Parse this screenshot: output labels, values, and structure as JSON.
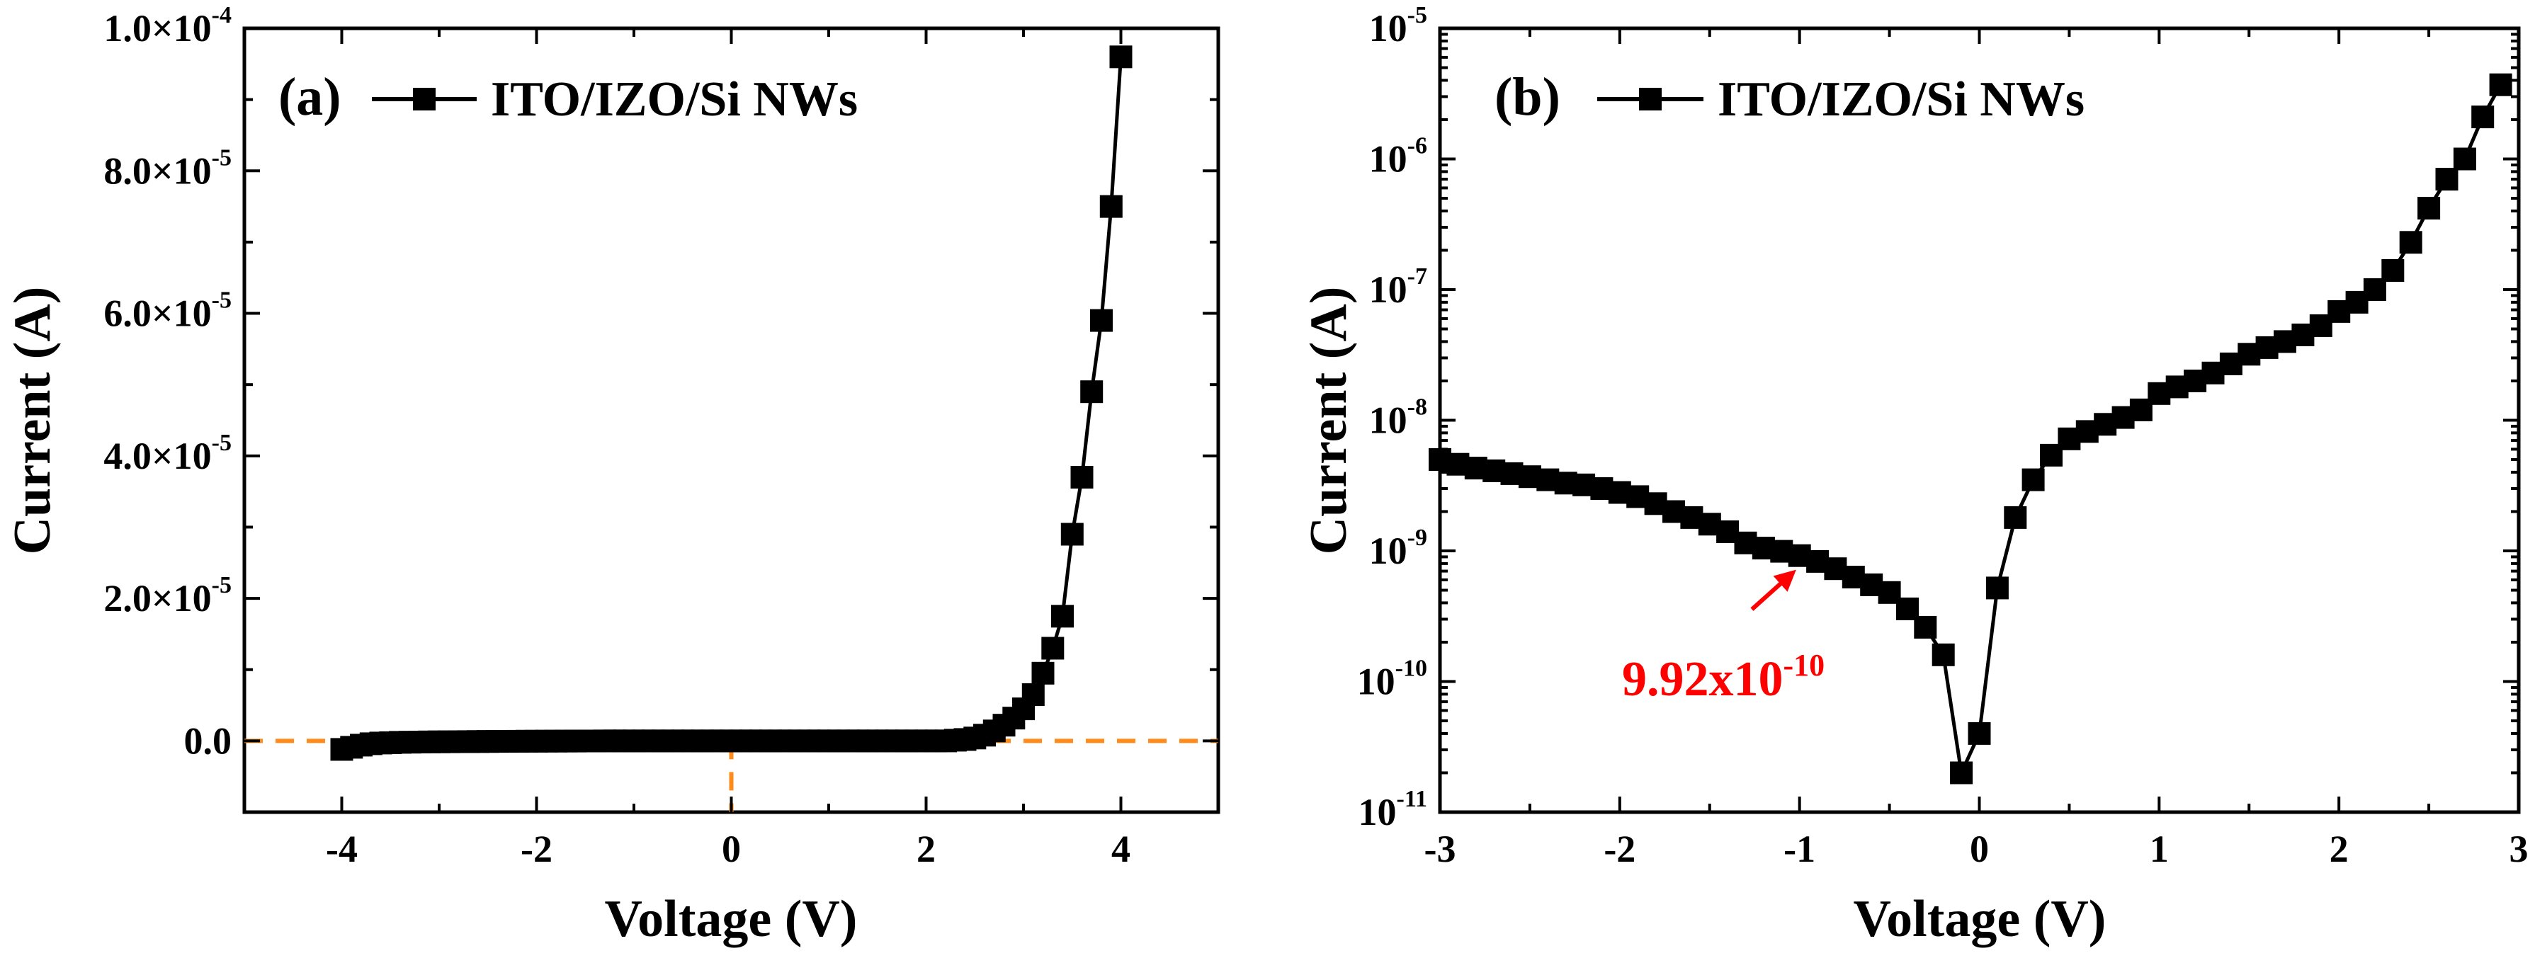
{
  "chart_data": [
    {
      "panel": "a",
      "type": "line",
      "panel_label": "(a)",
      "xlabel": "Voltage (V)",
      "ylabel": "Current (A)",
      "xlim": [
        -5,
        5
      ],
      "ylim": [
        -1e-05,
        0.0001
      ],
      "xticks": [
        -4,
        -2,
        0,
        2,
        4
      ],
      "yticks": [
        {
          "value": 0.0,
          "label": "0.0"
        },
        {
          "value": 2e-05,
          "label": "2.0×10",
          "exp": "-5"
        },
        {
          "value": 4e-05,
          "label": "4.0×10",
          "exp": "-5"
        },
        {
          "value": 6e-05,
          "label": "6.0×10",
          "exp": "-5"
        },
        {
          "value": 8e-05,
          "label": "8.0×10",
          "exp": "-5"
        },
        {
          "value": 0.0001,
          "label": "1.0×10",
          "exp": "-4"
        }
      ],
      "legend": "top-left",
      "series": [
        {
          "name": "ITO/IZO/Si NWs",
          "marker": "square",
          "x": [
            -4.0,
            -3.9,
            -3.8,
            -3.7,
            -3.6,
            -3.5,
            -3.4,
            -3.3,
            -3.2,
            -3.1,
            -3.0,
            -2.9,
            -2.8,
            -2.7,
            -2.6,
            -2.5,
            -2.4,
            -2.3,
            -2.2,
            -2.1,
            -2.0,
            -1.9,
            -1.8,
            -1.7,
            -1.6,
            -1.5,
            -1.4,
            -1.3,
            -1.2,
            -1.1,
            -1.0,
            -0.9,
            -0.8,
            -0.7,
            -0.6,
            -0.5,
            -0.4,
            -0.3,
            -0.2,
            -0.1,
            0.0,
            0.1,
            0.2,
            0.3,
            0.4,
            0.5,
            0.6,
            0.7,
            0.8,
            0.9,
            1.0,
            1.1,
            1.2,
            1.3,
            1.4,
            1.5,
            1.6,
            1.7,
            1.8,
            1.9,
            2.0,
            2.1,
            2.2,
            2.3,
            2.4,
            2.5,
            2.6,
            2.7,
            2.8,
            2.9,
            3.0,
            3.1,
            3.2,
            3.3,
            3.4,
            3.5,
            3.6,
            3.7,
            3.8,
            3.9,
            4.0
          ],
          "y": [
            -1.2e-06,
            -9e-07,
            -6e-07,
            -4e-07,
            -3e-07,
            -2.5e-07,
            -2e-07,
            -1.8e-07,
            -1.6e-07,
            -1.4e-07,
            -1.3e-07,
            -1.2e-07,
            -1.1e-07,
            -1e-07,
            -9e-08,
            -8e-08,
            -7e-08,
            -6e-08,
            -5e-08,
            -4.5e-08,
            -4e-08,
            -3.5e-08,
            -3e-08,
            -2.5e-08,
            -2e-08,
            -1.5e-08,
            -1e-08,
            -8e-09,
            -6e-09,
            -4e-09,
            -2e-09,
            -1e-09,
            0.0,
            0.0,
            0.0,
            0.0,
            0.0,
            0.0,
            0.0,
            0.0,
            0.0,
            0.0,
            0.0,
            0.0,
            0.0,
            0.0,
            0.0,
            0.0,
            0.0,
            0.0,
            0.0,
            0.0,
            0.0,
            0.0,
            0.0,
            0.0,
            0.0,
            0.0,
            0.0,
            0.0,
            0.0,
            0.0,
            0.0,
            1e-07,
            2e-07,
            4e-07,
            8e-07,
            1.4e-06,
            2.2e-06,
            3.2e-06,
            4.5e-06,
            6.5e-06,
            9.5e-06,
            1.3e-05,
            1.75e-05,
            2.9e-05,
            3.7e-05,
            4.9e-05,
            5.9e-05,
            7.5e-05,
            9.6e-05
          ]
        }
      ],
      "reference_lines": [
        {
          "orientation": "horizontal",
          "value": 0,
          "style": "dashed",
          "color": "#ff8c1a"
        },
        {
          "orientation": "vertical",
          "value": 0,
          "style": "dashed",
          "color": "#ff8c1a"
        }
      ]
    },
    {
      "panel": "b",
      "type": "line",
      "yscale": "log",
      "panel_label": "(b)",
      "xlabel": "Voltage (V)",
      "ylabel": "Current (A)",
      "xlim": [
        -3,
        3
      ],
      "ylim": [
        1e-11,
        1e-05
      ],
      "xticks": [
        -3,
        -2,
        -1,
        0,
        1,
        2,
        3
      ],
      "yticks": [
        {
          "value": 1e-11,
          "label": "10",
          "exp": "-11"
        },
        {
          "value": 1e-10,
          "label": "10",
          "exp": "-10"
        },
        {
          "value": 1e-09,
          "label": "10",
          "exp": "-9"
        },
        {
          "value": 1e-08,
          "label": "10",
          "exp": "-8"
        },
        {
          "value": 1e-07,
          "label": "10",
          "exp": "-7"
        },
        {
          "value": 1e-06,
          "label": "10",
          "exp": "-6"
        },
        {
          "value": 1e-05,
          "label": "10",
          "exp": "-5"
        }
      ],
      "legend": "top-left",
      "series": [
        {
          "name": "ITO/IZO/Si NWs",
          "marker": "square",
          "x": [
            -3.0,
            -2.9,
            -2.8,
            -2.7,
            -2.6,
            -2.5,
            -2.4,
            -2.3,
            -2.2,
            -2.1,
            -2.0,
            -1.9,
            -1.8,
            -1.7,
            -1.6,
            -1.5,
            -1.4,
            -1.3,
            -1.2,
            -1.1,
            -1.0,
            -0.9,
            -0.8,
            -0.7,
            -0.6,
            -0.5,
            -0.4,
            -0.3,
            -0.2,
            -0.1,
            0.0,
            0.1,
            0.2,
            0.3,
            0.4,
            0.5,
            0.6,
            0.7,
            0.8,
            0.9,
            1.0,
            1.1,
            1.2,
            1.3,
            1.4,
            1.5,
            1.6,
            1.7,
            1.8,
            1.9,
            2.0,
            2.1,
            2.2,
            2.3,
            2.4,
            2.5,
            2.6,
            2.7,
            2.8,
            2.9
          ],
          "y": [
            5e-09,
            4.6e-09,
            4.3e-09,
            4.1e-09,
            3.9e-09,
            3.7e-09,
            3.5e-09,
            3.3e-09,
            3.2e-09,
            3e-09,
            2.8e-09,
            2.6e-09,
            2.3e-09,
            2e-09,
            1.8e-09,
            1.6e-09,
            1.4e-09,
            1.15e-09,
            1.05e-09,
            9.92e-10,
            9.2e-10,
            8.3e-10,
            7.3e-10,
            6.3e-10,
            5.5e-10,
            4.8e-10,
            3.6e-10,
            2.6e-10,
            1.6e-10,
            2e-11,
            4e-11,
            5.2e-10,
            1.8e-09,
            3.5e-09,
            5.4e-09,
            7.2e-09,
            8.2e-09,
            9.3e-09,
            1.05e-08,
            1.2e-08,
            1.6e-08,
            1.8e-08,
            2e-08,
            2.3e-08,
            2.7e-08,
            3.2e-08,
            3.6e-08,
            4e-08,
            4.5e-08,
            5.3e-08,
            6.8e-08,
            8e-08,
            1e-07,
            1.4e-07,
            2.3e-07,
            4.2e-07,
            7e-07,
            1e-06,
            2.1e-06,
            3.7e-06
          ]
        }
      ],
      "annotation": {
        "text": "9.92x10",
        "exp": "-10",
        "target_x": -0.95,
        "target_y": 9.92e-10,
        "color": "#ff0000"
      }
    }
  ]
}
